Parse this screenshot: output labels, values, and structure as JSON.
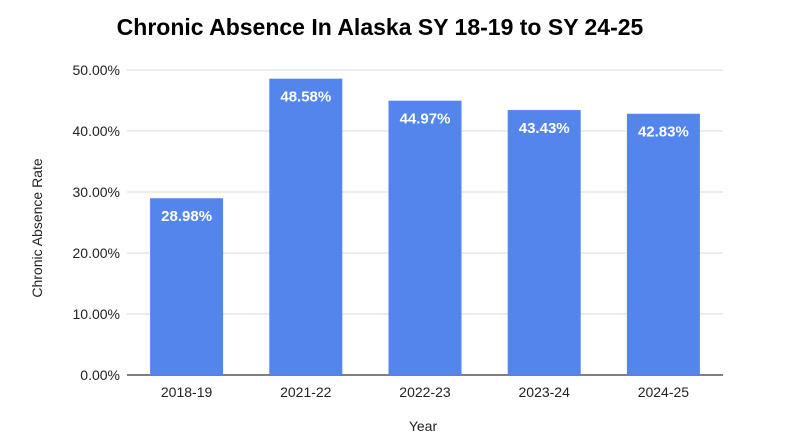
{
  "chart_data": {
    "type": "bar",
    "title": "Chronic Absence In Alaska SY 18-19 to SY 24-25",
    "xlabel": "Year",
    "ylabel": "Chronic Absence Rate",
    "categories": [
      "2018-19",
      "2021-22",
      "2022-23",
      "2023-24",
      "2024-25"
    ],
    "values": [
      28.98,
      48.58,
      44.97,
      43.43,
      42.83
    ],
    "data_labels": [
      "28.98%",
      "48.58%",
      "44.97%",
      "43.43%",
      "42.83%"
    ],
    "y_ticks": [
      0,
      10,
      20,
      30,
      40,
      50
    ],
    "y_tick_labels": [
      "0.00%",
      "10.00%",
      "20.00%",
      "30.00%",
      "40.00%",
      "50.00%"
    ],
    "ylim": [
      0,
      50
    ],
    "grid": true,
    "legend": "none",
    "bar_color": "#5485EC",
    "grid_color": "#D9D9D9"
  }
}
